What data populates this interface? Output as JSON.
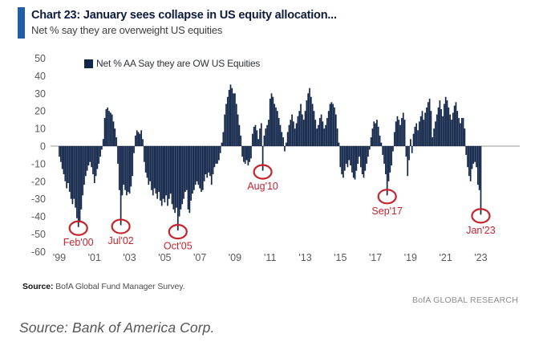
{
  "header": {
    "title": "Chart 23: January sees collapse in US equity allocation...",
    "subtitle": "Net % say they are overweight US equities"
  },
  "chart_data": {
    "type": "bar",
    "title": "Chart 23: January sees collapse in US equity allocation...",
    "subtitle": "Net % say they are overweight US equities",
    "legend": "Net % AA Say they are OW US Equities",
    "frequency": "monthly",
    "start_month": "Jan 1999",
    "end_month": "Jan 2023",
    "ylim": [
      -60,
      50
    ],
    "grid": false,
    "y_ticks": [
      50,
      40,
      30,
      20,
      10,
      0,
      -10,
      -20,
      -30,
      -40,
      -50,
      -60
    ],
    "x_tick_labels": [
      "'99",
      "'01",
      "'03",
      "'05",
      "'07",
      "'09",
      "'11",
      "'13",
      "'15",
      "'17",
      "'19",
      "'21",
      "'23"
    ],
    "x_tick_month_index": [
      0,
      24,
      48,
      72,
      96,
      120,
      144,
      168,
      192,
      216,
      240,
      264,
      288
    ],
    "values": [
      -6,
      -9,
      -13,
      -16,
      -20,
      -24,
      -21,
      -26,
      -30,
      -33,
      -30,
      -35,
      -41,
      -46,
      -43,
      -36,
      -28,
      -22,
      -17,
      -14,
      -11,
      -9,
      -12,
      -16,
      -21,
      -17,
      -13,
      -10,
      -6,
      -2,
      4,
      16,
      21,
      22,
      20,
      19,
      18,
      14,
      10,
      5,
      -10,
      -25,
      -45,
      -28,
      -22,
      -25,
      -28,
      -26,
      -27,
      -23,
      -17,
      -4,
      6,
      9,
      8,
      7,
      9,
      4,
      -9,
      -15,
      -18,
      -22,
      -20,
      -25,
      -28,
      -24,
      -27,
      -30,
      -26,
      -31,
      -34,
      -30,
      -32,
      -28,
      -34,
      -30,
      -27,
      -33,
      -36,
      -38,
      -35,
      -48,
      -40,
      -36,
      -33,
      -30,
      -26,
      -25,
      -36,
      -38,
      -31,
      -27,
      -25,
      -22,
      -20,
      -22,
      -24,
      -26,
      -25,
      -20,
      -16,
      -18,
      -15,
      -17,
      -22,
      -16,
      -12,
      -10,
      -10,
      -8,
      -4,
      2,
      8,
      18,
      24,
      28,
      32,
      35,
      33,
      30,
      30,
      24,
      18,
      12,
      6,
      -6,
      -9,
      -10,
      -8,
      -11,
      -9,
      -7,
      7,
      11,
      12,
      9,
      4,
      10,
      13,
      -14,
      6,
      10,
      12,
      15,
      27,
      30,
      28,
      24,
      22,
      20,
      16,
      12,
      8,
      5,
      -3,
      2,
      8,
      12,
      15,
      18,
      14,
      10,
      13,
      17,
      20,
      24,
      18,
      15,
      20,
      26,
      30,
      33,
      28,
      24,
      20,
      15,
      10,
      12,
      16,
      18,
      14,
      10,
      12,
      16,
      20,
      24,
      25,
      24,
      22,
      18,
      10,
      2,
      -12,
      -16,
      -18,
      -14,
      -10,
      -12,
      -8,
      -11,
      -15,
      -18,
      -19,
      -14,
      -10,
      -6,
      -12,
      -16,
      -18,
      -14,
      -10,
      -6,
      -2,
      5,
      10,
      14,
      13,
      15,
      11,
      6,
      2,
      -5,
      -10,
      -16,
      -28,
      -20,
      -15,
      -11,
      -3,
      8,
      14,
      17,
      15,
      12,
      16,
      19,
      15,
      -6,
      -17,
      -8,
      4,
      -4,
      7,
      11,
      13,
      9,
      14,
      17,
      20,
      15,
      19,
      22,
      25,
      27,
      20,
      5,
      10,
      14,
      18,
      22,
      26,
      21,
      17,
      24,
      28,
      26,
      22,
      18,
      15,
      19,
      23,
      25,
      20,
      16,
      13,
      16,
      16,
      10,
      -5,
      -12,
      -17,
      -20,
      -13,
      -10,
      -9,
      -12,
      -22,
      -25,
      -39
    ],
    "annotations": [
      {
        "label": "Feb'00",
        "index": 13,
        "value": -46
      },
      {
        "label": "Jul'02",
        "index": 42,
        "value": -45
      },
      {
        "label": "Oct'05",
        "index": 81,
        "value": -48
      },
      {
        "label": "Aug'10",
        "index": 139,
        "value": -14
      },
      {
        "label": "Sep'17",
        "index": 224,
        "value": -28
      },
      {
        "label": "Jan'23",
        "index": 288,
        "value": -39
      }
    ],
    "colors": {
      "bar": "#12264a",
      "annotation": "#c5242c",
      "axis_line": "#999999",
      "tick_text": "#595959",
      "accent": "#1f5fa8"
    }
  },
  "footer": {
    "source_label": "Source:",
    "source_text": "BofA Global Fund Manager Survey.",
    "brand": "BofA GLOBAL RESEARCH"
  },
  "caption": "Source: Bank of America Corp."
}
